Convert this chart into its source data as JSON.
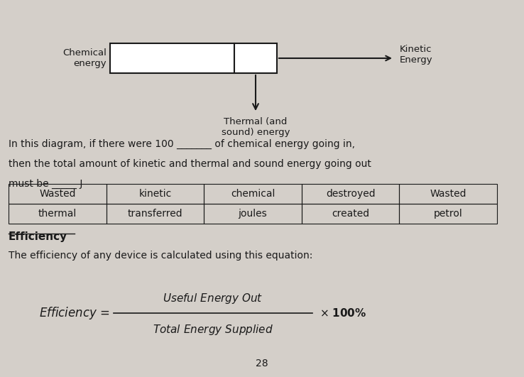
{
  "bg_color": "#d4cfc9",
  "diagram": {
    "chem_label": "Chemical\nenergy",
    "kinetic_label": "Kinetic\nEnergy",
    "thermal_label": "Thermal (and\nsound) energy"
  },
  "paragraph1": "In this diagram, if there were 100 _______ of chemical energy going in,",
  "paragraph2": "then the total amount of kinetic and thermal and sound energy going out",
  "paragraph3": "must be _____ J",
  "table": {
    "rows": [
      [
        "Wasted",
        "kinetic",
        "chemical",
        "destroyed",
        "Wasted"
      ],
      [
        "thermal",
        "transferred",
        "joules",
        "created",
        "petrol"
      ]
    ]
  },
  "efficiency_heading": "Efficiency",
  "efficiency_text": "The efficiency of any device is calculated using this equation:",
  "page_number": "28",
  "text_color": "#1a1a1a",
  "font_size_body": 10,
  "font_size_heading": 11
}
